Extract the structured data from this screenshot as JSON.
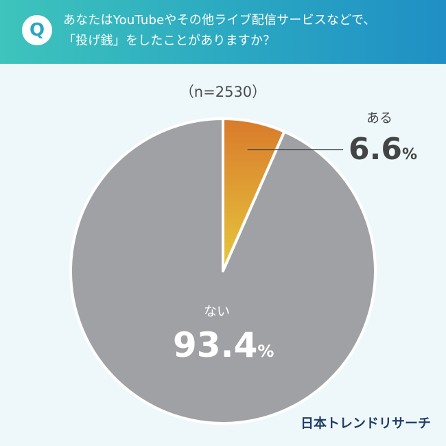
{
  "header": {
    "badge": "Q",
    "question_line1": "あなたはYouTubeやその他ライブ配信サービスなどで、",
    "question_line2": "「投げ銭」をしたことがありますか？"
  },
  "sample_size": "（n=2530）",
  "brand": "日本トレンドリサーチ",
  "chart_data": {
    "type": "pie",
    "title": "",
    "slices": [
      {
        "label": "ある",
        "value": 6.6,
        "display": "6.6",
        "unit": "%",
        "color_start": "#d97a2b",
        "color_end": "#e6c93e"
      },
      {
        "label": "ない",
        "value": 93.4,
        "display": "93.4",
        "unit": "%",
        "color": "#a0a1a5"
      }
    ],
    "start_angle_deg": 0,
    "direction": "clockwise",
    "slice_border_color": "#ffffff",
    "leader_line_color": "#444444",
    "legend": "none"
  }
}
